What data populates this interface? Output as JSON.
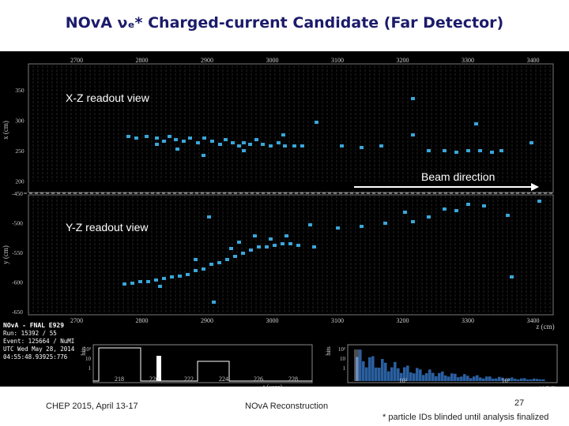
{
  "title": "NOvA νₑ* Charged-current  Candidate  (Far Detector)",
  "views": {
    "xz_label": "X-Z readout view",
    "yz_label": "Y-Z readout view",
    "beam_label": "Beam direction"
  },
  "axes": {
    "z_ticks": [
      "2700",
      "2800",
      "2900",
      "3000",
      "3100",
      "3200",
      "3300",
      "3400"
    ],
    "x_ticks": [
      "350",
      "300",
      "250",
      "200"
    ],
    "y_ticks": [
      "-450",
      "-500",
      "-550",
      "-600",
      "-650"
    ],
    "x_axis_title": "x (cm)",
    "y_axis_title": "y (cm)",
    "z_axis_title": "z (cm)"
  },
  "info": {
    "header": "NOvA - FNAL E929",
    "run": "Run:  15392 / 55",
    "event": "Event: 125664 / NuMI",
    "utc": "UTC Wed May 28, 2014",
    "time": "04:55:48.93925:776"
  },
  "time_hist": {
    "ylabel": "hits",
    "xlabel": "t (μsec)",
    "y_ticks": [
      "10²",
      "10",
      "1"
    ],
    "x_ticks": [
      "218",
      "220",
      "222",
      "224",
      "226",
      "228"
    ]
  },
  "adc_hist": {
    "ylabel": "hits",
    "xlabel": "q (ADC)",
    "y_ticks": [
      "10²",
      "10",
      "1"
    ],
    "x_ticks": [
      "10²",
      "10³"
    ]
  },
  "footer": {
    "left": "CHEP 2015,  April 13-17",
    "center": "NOvA Reconstruction",
    "page": "27",
    "note": "* particle IDs blinded until analysis finalized"
  },
  "colors": {
    "title": "#1b1b6b",
    "hit": "#3aa6d8",
    "bg": "#000000"
  }
}
